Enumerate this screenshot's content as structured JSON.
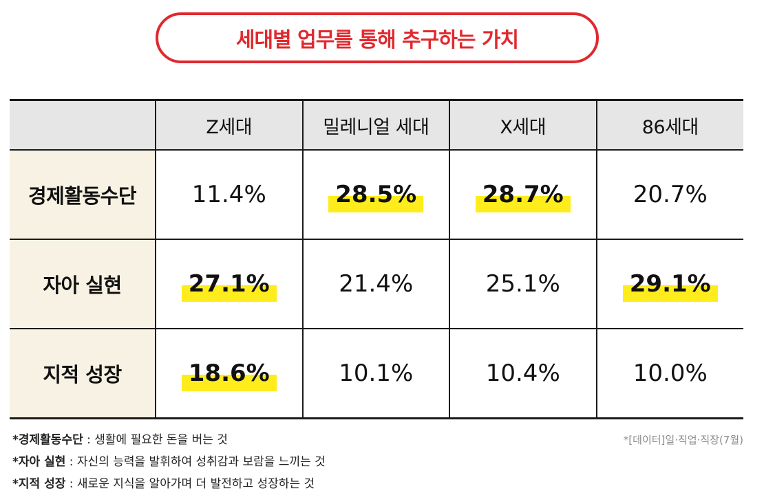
{
  "chart_data": {
    "type": "table",
    "title": "세대별 업무를 통해 추구하는 가치",
    "columns": [
      "Z세대",
      "밀레니얼 세대",
      "X세대",
      "86세대"
    ],
    "rows": [
      {
        "label": "경제활동수단",
        "values": [
          "11.4%",
          "28.5%",
          "28.7%",
          "20.7%"
        ],
        "highlight": [
          false,
          true,
          true,
          false
        ]
      },
      {
        "label": "자아 실현",
        "values": [
          "27.1%",
          "21.4%",
          "25.1%",
          "29.1%"
        ],
        "highlight": [
          true,
          false,
          false,
          true
        ]
      },
      {
        "label": "지적 성장",
        "values": [
          "18.6%",
          "10.1%",
          "10.4%",
          "10.0%"
        ],
        "highlight": [
          true,
          false,
          false,
          false
        ]
      }
    ]
  },
  "notes": [
    {
      "term": "*경제활동수단",
      "text": " : 생활에 필요한 돈을 버는 것"
    },
    {
      "term": "*자아 실현",
      "text": " : 자신의 능력을 발휘하여 성취감과 보람을 느끼는 것"
    },
    {
      "term": "*지적 성장",
      "text": " : 새로운 지식을 알아가며 더 발전하고 성장하는 것"
    }
  ],
  "source": "*[데이터]일·직업·직장(7월)",
  "colors": {
    "title": "#e0292e",
    "highlight": "#ffec1c",
    "header_bg": "#e6e6e6",
    "rowhead_bg": "#f7f2e3"
  }
}
